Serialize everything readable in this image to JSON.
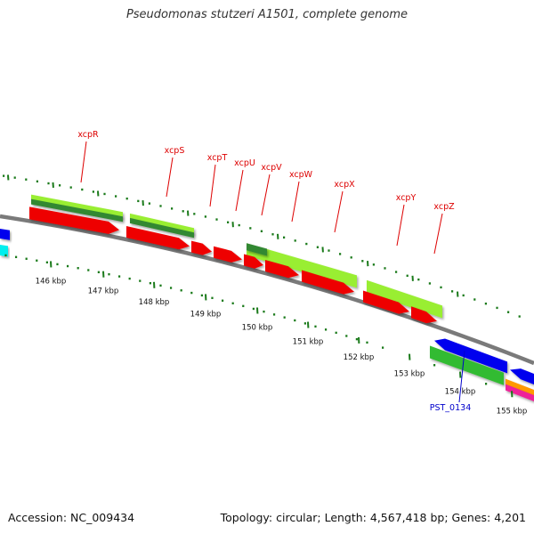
{
  "title": "Pseudomonas stutzeri A1501, complete genome",
  "footer": {
    "accession": "Accession: NC_009434",
    "summary": "Topology: circular; Length: 4,567,418 bp; Genes: 4,201"
  },
  "colors": {
    "backbone": "#7a7a7a",
    "scale_tick": "#1a7a1a",
    "gene_label": "#dd0000",
    "locus_label": "#0000cc",
    "red_feature": "#ee0000",
    "lime_feature": "#99ee33",
    "dark_green_feature": "#338833",
    "green_feature": "#33bb33",
    "blue_feature": "#0000ee",
    "cyan_feature": "#00eeee",
    "orange_feature": "#ff9900",
    "magenta_feature": "#ee2299"
  },
  "scale": {
    "labels": [
      "146 kbp",
      "147 kbp",
      "148 kbp",
      "149 kbp",
      "150 kbp",
      "151 kbp",
      "152 kbp",
      "153 kbp",
      "154 kbp",
      "155 kbp"
    ]
  },
  "gene_labels": [
    "xcpR",
    "xcpS",
    "xcpT",
    "xcpU",
    "xcpV",
    "xcpW",
    "xcpX",
    "xcpY",
    "xcpZ"
  ],
  "locus_labels": [
    "PST_0134"
  ]
}
